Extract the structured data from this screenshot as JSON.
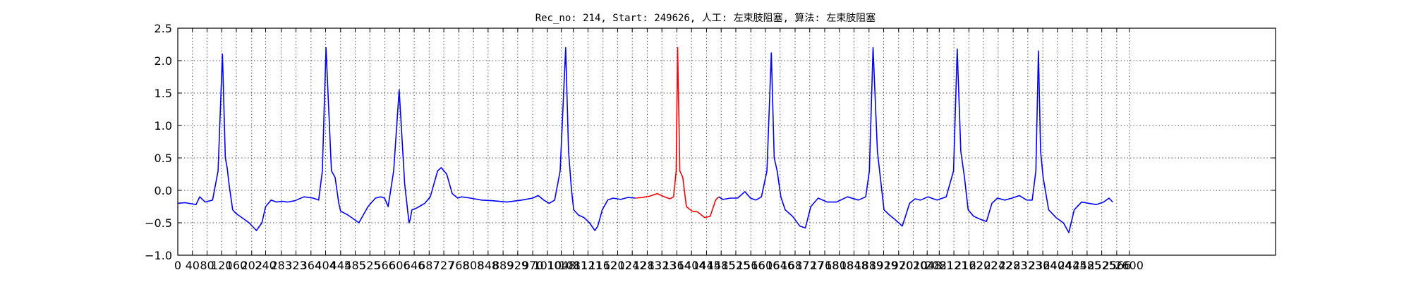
{
  "chart_data": {
    "type": "line",
    "title": "Rec_no: 214, Start: 249626, 人工: 左束肢阻塞, 算法: 左束肢阻塞",
    "xlabel": "",
    "ylabel": "",
    "xlim": [
      0,
      3000
    ],
    "ylim": [
      -1.0,
      2.5
    ],
    "grid": true,
    "y_ticks": [
      -1.0,
      -0.5,
      0.0,
      0.5,
      1.0,
      1.5,
      2.0,
      2.5
    ],
    "y_tick_labels": [
      "−1.0",
      "−0.5",
      "0.0",
      "0.5",
      "1.0",
      "1.5",
      "2.0",
      "2.5"
    ],
    "x_ticks": [
      0,
      40,
      80,
      120,
      160,
      202,
      240,
      283,
      323,
      364,
      404,
      445,
      485,
      525,
      566,
      606,
      646,
      687,
      727,
      768,
      808,
      848,
      889,
      929,
      970,
      1010,
      1048,
      1081,
      1121,
      1162,
      1202,
      1242,
      1283,
      1323,
      1364,
      1404,
      1445,
      1485,
      1525,
      1566,
      1606,
      1646,
      1687,
      1727,
      1768,
      1808,
      1848,
      1889,
      1929,
      1970,
      2010,
      2048,
      2081,
      2121,
      2162,
      2202,
      2242,
      2283,
      2323,
      2364,
      2404,
      2445,
      2485,
      2525,
      2566,
      2600
    ],
    "x_tick_labels": [
      "0",
      "40",
      "80",
      "120",
      "160",
      "202",
      "240",
      "283",
      "323",
      "364",
      "404",
      "445",
      "485",
      "525",
      "566",
      "606",
      "646",
      "687",
      "727",
      "768",
      "808",
      "848",
      "889",
      "929",
      "970",
      "1010",
      "1048",
      "1081",
      "1121",
      "1162",
      "1202",
      "1242",
      "1283",
      "1323",
      "1364",
      "1404",
      "1445",
      "1485",
      "1525",
      "1566",
      "1606",
      "1646",
      "1687",
      "1727",
      "1768",
      "1808",
      "1848",
      "1889",
      "1929",
      "1970",
      "2010",
      "2048",
      "2081",
      "2121",
      "2162",
      "2202",
      "2242",
      "2283",
      "2323",
      "2364",
      "2404",
      "2445",
      "2485",
      "2525",
      "2566",
      "2600"
    ],
    "series": [
      {
        "color": "#0000ff",
        "segment": "before",
        "x": [
          0,
          20,
          50,
          60,
          75,
          95,
          110,
          122,
          130,
          135,
          140,
          150,
          158,
          165,
          175,
          195,
          215,
          230,
          240,
          255,
          270,
          285,
          300,
          320,
          345,
          370,
          385,
          395,
          405,
          420,
          430,
          435,
          440,
          445,
          455,
          465,
          475,
          495,
          520,
          540,
          555,
          565,
          575,
          590,
          605,
          620,
          628,
          632,
          635,
          640,
          650,
          660,
          675,
          690,
          700,
          710,
          720,
          735,
          750,
          765,
          775,
          800,
          830,
          860,
          900,
          940,
          970,
          985,
          1000,
          1015,
          1030,
          1045,
          1060,
          1068,
          1072,
          1076,
          1082,
          1095,
          1110,
          1125,
          1140,
          1148,
          1160,
          1175,
          1190,
          1210,
          1230,
          1250
        ],
        "y": [
          -0.2,
          -0.19,
          -0.22,
          -0.1,
          -0.18,
          -0.15,
          0.3,
          2.1,
          0.5,
          0.35,
          0.1,
          -0.3,
          -0.35,
          -0.38,
          -0.42,
          -0.5,
          -0.62,
          -0.5,
          -0.25,
          -0.15,
          -0.18,
          -0.17,
          -0.18,
          -0.16,
          -0.1,
          -0.12,
          -0.15,
          0.3,
          2.2,
          0.3,
          0.2,
          0.0,
          -0.2,
          -0.32,
          -0.35,
          -0.38,
          -0.42,
          -0.5,
          -0.25,
          -0.12,
          -0.1,
          -0.12,
          -0.25,
          0.3,
          1.55,
          0.1,
          -0.3,
          -0.5,
          -0.45,
          -0.3,
          -0.28,
          -0.25,
          -0.2,
          -0.1,
          0.1,
          0.3,
          0.35,
          0.25,
          -0.05,
          -0.12,
          -0.1,
          -0.12,
          -0.15,
          -0.16,
          -0.18,
          -0.15,
          -0.12,
          -0.08,
          -0.15,
          -0.2,
          -0.15,
          0.3,
          2.2,
          0.6,
          0.3,
          0.0,
          -0.3,
          -0.38,
          -0.42,
          -0.5,
          -0.62,
          -0.55,
          -0.3,
          -0.15,
          -0.12,
          -0.14,
          -0.11,
          -0.12
        ]
      },
      {
        "color": "#ff0000",
        "segment": "highlight",
        "x": [
          1250,
          1270,
          1290,
          1310,
          1330,
          1345,
          1355,
          1362,
          1366,
          1372,
          1380,
          1390,
          1405,
          1420,
          1440,
          1455,
          1470,
          1478
        ],
        "y": [
          -0.12,
          -0.11,
          -0.09,
          -0.05,
          -0.1,
          -0.13,
          -0.1,
          0.3,
          2.2,
          0.3,
          0.2,
          -0.25,
          -0.32,
          -0.33,
          -0.42,
          -0.4,
          -0.15,
          -0.1
        ]
      },
      {
        "color": "#0000ff",
        "segment": "after",
        "x": [
          1478,
          1490,
          1510,
          1530,
          1550,
          1565,
          1580,
          1595,
          1610,
          1622,
          1630,
          1638,
          1648,
          1660,
          1680,
          1700,
          1715,
          1730,
          1750,
          1775,
          1800,
          1830,
          1860,
          1880,
          1890,
          1900,
          1912,
          1920,
          1930,
          1945,
          1960,
          1980,
          2000,
          2015,
          2030,
          2050,
          2075,
          2100,
          2120,
          2130,
          2140,
          2150,
          2160,
          2175,
          2195,
          2210,
          2225,
          2240,
          2260,
          2280,
          2300,
          2320,
          2335,
          2345,
          2352,
          2358,
          2365,
          2380,
          2400,
          2420,
          2435,
          2450,
          2470,
          2490,
          2510,
          2530,
          2545,
          2555
        ],
        "y": [
          -0.1,
          -0.14,
          -0.12,
          -0.12,
          -0.02,
          -0.12,
          -0.15,
          -0.1,
          0.3,
          2.12,
          0.5,
          0.3,
          -0.1,
          -0.3,
          -0.4,
          -0.55,
          -0.58,
          -0.25,
          -0.12,
          -0.18,
          -0.18,
          -0.1,
          -0.15,
          -0.1,
          0.3,
          2.2,
          0.6,
          0.2,
          -0.3,
          -0.38,
          -0.45,
          -0.55,
          -0.2,
          -0.13,
          -0.15,
          -0.1,
          -0.15,
          -0.1,
          0.3,
          2.18,
          0.6,
          0.2,
          -0.3,
          -0.4,
          -0.45,
          -0.48,
          -0.2,
          -0.12,
          -0.15,
          -0.12,
          -0.08,
          -0.15,
          -0.15,
          0.3,
          2.15,
          0.6,
          0.2,
          -0.3,
          -0.42,
          -0.5,
          -0.65,
          -0.3,
          -0.18,
          -0.2,
          -0.22,
          -0.18,
          -0.12,
          -0.18
        ]
      }
    ]
  }
}
